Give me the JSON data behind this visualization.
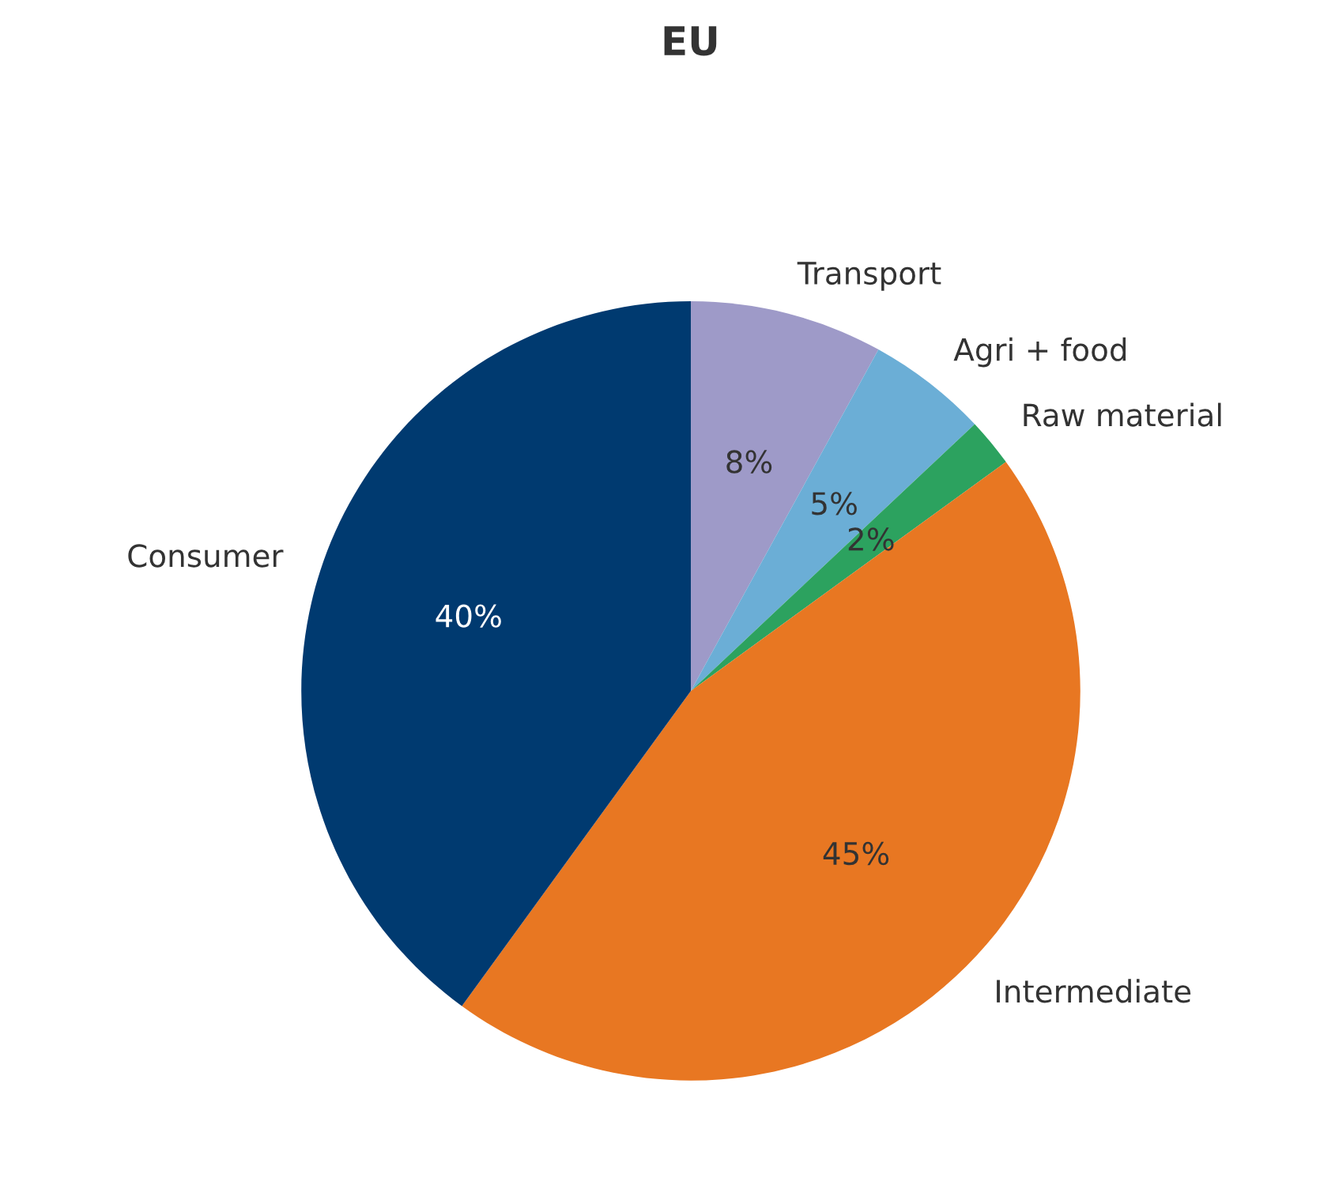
{
  "chart_data": {
    "type": "pie",
    "title": "EU",
    "categories": [
      "Transport",
      "Agri + food",
      "Raw material",
      "Intermediate",
      "Consumer"
    ],
    "values": [
      8,
      5,
      2,
      45,
      40
    ],
    "colors": [
      "#9e9ac8",
      "#6baed6",
      "#2ca25f",
      "#e87722",
      "#003a70"
    ],
    "value_labels": [
      "8%",
      "5%",
      "2%",
      "45%",
      "40%"
    ]
  }
}
